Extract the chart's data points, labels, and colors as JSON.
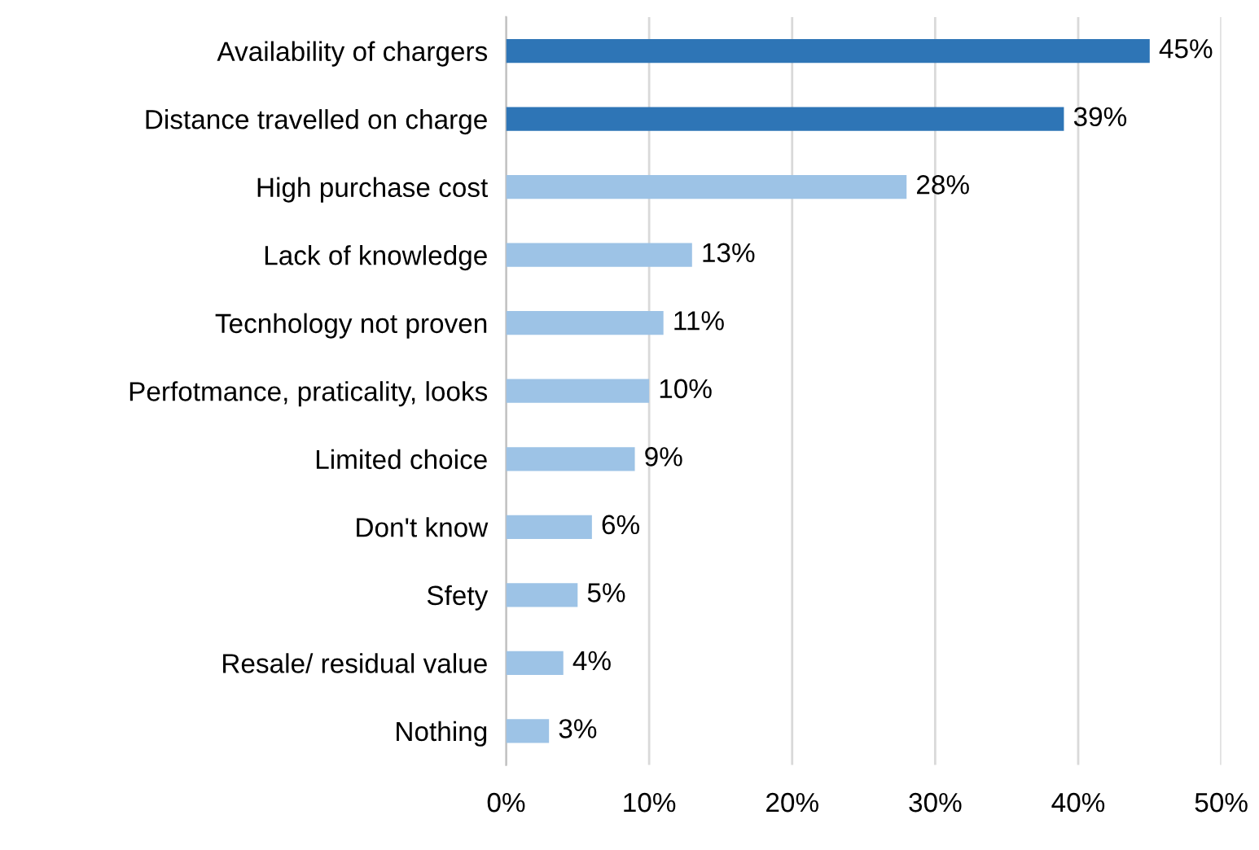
{
  "chart_data": {
    "type": "bar",
    "orientation": "horizontal",
    "categories": [
      "Availability of chargers",
      "Distance travelled on charge",
      "High purchase cost",
      "Lack of knowledge",
      "Tecnhology not proven",
      "Perfotmance, praticality, looks",
      "Limited choice",
      "Don't know",
      "Sfety",
      "Resale/ residual value",
      "Nothing"
    ],
    "values": [
      45,
      39,
      28,
      13,
      11,
      10,
      9,
      6,
      5,
      4,
      3
    ],
    "colors": [
      "#2e75b6",
      "#2e75b6",
      "#9dc3e6",
      "#9dc3e6",
      "#9dc3e6",
      "#9dc3e6",
      "#9dc3e6",
      "#9dc3e6",
      "#9dc3e6",
      "#9dc3e6",
      "#9dc3e6"
    ],
    "value_labels": [
      "45%",
      "39%",
      "28%",
      "13%",
      "11%",
      "10%",
      "9%",
      "6%",
      "5%",
      "4%",
      "3%"
    ],
    "xlim": [
      0,
      50
    ],
    "xticks": [
      {
        "value": 0,
        "label": "0%"
      },
      {
        "value": 10,
        "label": "10%"
      },
      {
        "value": 20,
        "label": "20%"
      },
      {
        "value": 30,
        "label": "30%"
      },
      {
        "value": 40,
        "label": "40%"
      },
      {
        "value": 50,
        "label": "50%"
      }
    ],
    "grid": "x",
    "legend": false
  }
}
